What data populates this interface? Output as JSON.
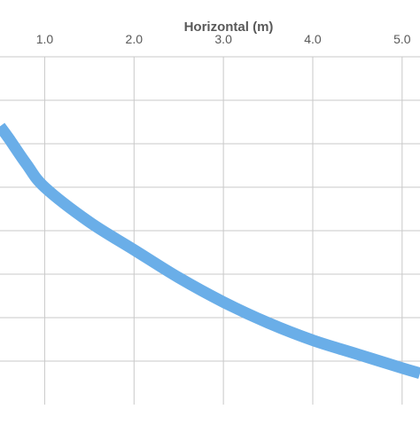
{
  "chart_data": {
    "type": "line",
    "title": "",
    "xlabel": "Horizontal (m)",
    "ylabel": "",
    "x_axis_position": "top",
    "xlim": [
      0.5,
      5.2
    ],
    "ylim": [
      0,
      1
    ],
    "x_ticks": [
      1.0,
      2.0,
      3.0,
      4.0,
      5.0
    ],
    "x_tick_labels": [
      "1.0",
      "2.0",
      "3.0",
      "4.0",
      "5.0"
    ],
    "horizontal_gridlines": 8,
    "grid": true,
    "legend": "none",
    "series": [
      {
        "color": "#6aaee8",
        "x": [
          0.5,
          0.6,
          0.8,
          1.0,
          1.5,
          2.0,
          2.5,
          3.0,
          3.5,
          4.0,
          4.5,
          5.0,
          5.2
        ],
        "y": [
          0.8,
          0.765,
          0.69,
          0.625,
          0.525,
          0.445,
          0.365,
          0.295,
          0.235,
          0.185,
          0.145,
          0.105,
          0.09
        ]
      }
    ]
  },
  "colors": {
    "grid": "#c9c9c9",
    "tick_text": "#595959",
    "line": "#6aaee8"
  }
}
